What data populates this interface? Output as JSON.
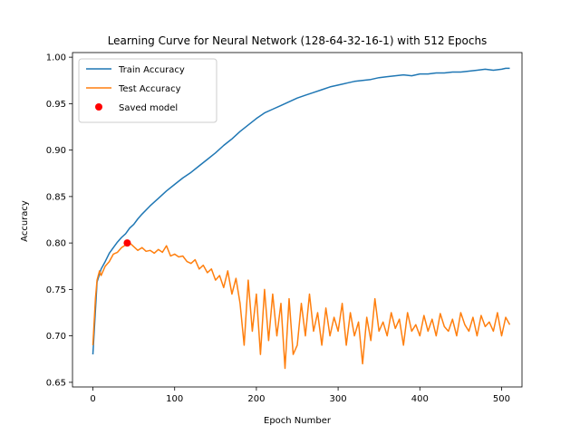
{
  "chart_data": {
    "type": "line",
    "title": "Learning Curve for Neural Network (128-64-32-16-1) with 512 Epochs",
    "xlabel": "Epoch Number",
    "ylabel": "Accuracy",
    "xlim": [
      -25,
      525
    ],
    "ylim": [
      0.645,
      1.005
    ],
    "xticks": [
      0,
      100,
      200,
      300,
      400,
      500
    ],
    "yticks": [
      0.65,
      0.7,
      0.75,
      0.8,
      0.85,
      0.9,
      0.95,
      1.0
    ],
    "ytick_labels": [
      "0.65",
      "0.70",
      "0.75",
      "0.80",
      "0.85",
      "0.90",
      "0.95",
      "1.00"
    ],
    "grid": false,
    "legend_position": "upper left",
    "series": [
      {
        "name": "Train Accuracy",
        "color": "#1f77b4",
        "x": [
          0,
          5,
          10,
          15,
          20,
          25,
          30,
          35,
          40,
          45,
          50,
          55,
          60,
          70,
          80,
          90,
          100,
          110,
          120,
          130,
          140,
          150,
          160,
          170,
          180,
          190,
          200,
          210,
          220,
          230,
          240,
          250,
          260,
          270,
          280,
          290,
          300,
          310,
          320,
          330,
          340,
          350,
          360,
          370,
          380,
          390,
          400,
          410,
          420,
          430,
          440,
          450,
          460,
          470,
          480,
          490,
          500,
          505,
          510
        ],
        "y": [
          0.68,
          0.758,
          0.772,
          0.78,
          0.789,
          0.795,
          0.801,
          0.806,
          0.81,
          0.816,
          0.82,
          0.826,
          0.831,
          0.84,
          0.848,
          0.856,
          0.863,
          0.87,
          0.876,
          0.883,
          0.89,
          0.897,
          0.905,
          0.912,
          0.92,
          0.927,
          0.934,
          0.94,
          0.944,
          0.948,
          0.952,
          0.956,
          0.959,
          0.962,
          0.965,
          0.968,
          0.97,
          0.972,
          0.974,
          0.975,
          0.976,
          0.978,
          0.979,
          0.98,
          0.981,
          0.98,
          0.982,
          0.982,
          0.983,
          0.983,
          0.984,
          0.984,
          0.985,
          0.986,
          0.987,
          0.986,
          0.987,
          0.988,
          0.988
        ]
      },
      {
        "name": "Test Accuracy",
        "color": "#ff7f0e",
        "x": [
          0,
          3,
          5,
          8,
          10,
          15,
          20,
          25,
          30,
          35,
          40,
          45,
          50,
          55,
          60,
          65,
          70,
          75,
          80,
          85,
          90,
          95,
          100,
          105,
          110,
          115,
          120,
          125,
          130,
          135,
          140,
          145,
          150,
          155,
          160,
          165,
          170,
          175,
          180,
          185,
          190,
          195,
          200,
          205,
          210,
          215,
          220,
          225,
          230,
          235,
          240,
          245,
          250,
          255,
          260,
          265,
          270,
          275,
          280,
          285,
          290,
          295,
          300,
          305,
          310,
          315,
          320,
          325,
          330,
          335,
          340,
          345,
          350,
          355,
          360,
          365,
          370,
          375,
          380,
          385,
          390,
          395,
          400,
          405,
          410,
          415,
          420,
          425,
          430,
          435,
          440,
          445,
          450,
          455,
          460,
          465,
          470,
          475,
          480,
          485,
          490,
          495,
          500,
          505,
          510
        ],
        "y": [
          0.69,
          0.74,
          0.76,
          0.77,
          0.765,
          0.775,
          0.78,
          0.788,
          0.79,
          0.795,
          0.798,
          0.8,
          0.796,
          0.792,
          0.795,
          0.791,
          0.792,
          0.789,
          0.793,
          0.79,
          0.797,
          0.786,
          0.788,
          0.785,
          0.786,
          0.78,
          0.778,
          0.782,
          0.772,
          0.776,
          0.768,
          0.772,
          0.76,
          0.765,
          0.752,
          0.77,
          0.745,
          0.762,
          0.735,
          0.69,
          0.76,
          0.705,
          0.745,
          0.68,
          0.75,
          0.695,
          0.745,
          0.7,
          0.735,
          0.665,
          0.74,
          0.68,
          0.69,
          0.735,
          0.7,
          0.745,
          0.705,
          0.725,
          0.69,
          0.73,
          0.7,
          0.72,
          0.705,
          0.735,
          0.69,
          0.725,
          0.7,
          0.715,
          0.67,
          0.72,
          0.695,
          0.74,
          0.705,
          0.715,
          0.7,
          0.725,
          0.708,
          0.718,
          0.69,
          0.725,
          0.705,
          0.712,
          0.7,
          0.722,
          0.705,
          0.718,
          0.7,
          0.724,
          0.71,
          0.705,
          0.718,
          0.7,
          0.725,
          0.712,
          0.705,
          0.72,
          0.7,
          0.722,
          0.71,
          0.715,
          0.705,
          0.725,
          0.7,
          0.72,
          0.712
        ]
      }
    ],
    "markers": [
      {
        "name": "Saved model",
        "color": "#ff0000",
        "x": 42,
        "y": 0.8
      }
    ]
  }
}
